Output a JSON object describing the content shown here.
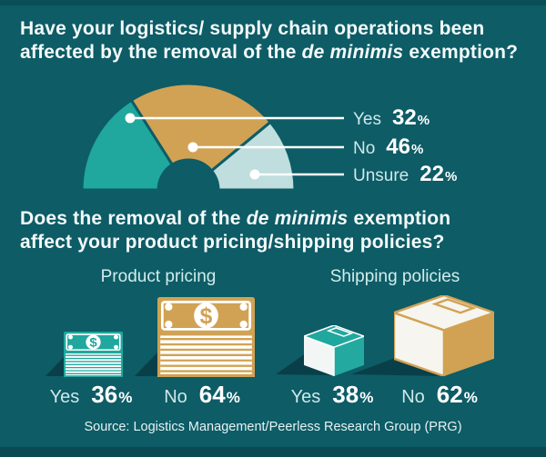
{
  "colors": {
    "background": "#0d5c66",
    "teal": "#20a79e",
    "gold": "#d1a254",
    "pale": "#bfdedd",
    "shadow": "#093f48",
    "label_light": "#cfe8ea",
    "white": "#ffffff"
  },
  "question1": {
    "line1": "Have your logistics/ supply chain operations been",
    "line2_pre": "affected by the removal of the ",
    "line2_italic": "de minimis",
    "line2_post": " exemption?"
  },
  "question2": {
    "line1_pre": "Does the removal of the ",
    "line1_italic": "de minimis",
    "line1_post": " exemption",
    "line2": "affect your product pricing/shipping policies?"
  },
  "icons": {
    "money_small": "money-stack-icon",
    "money_large": "money-stack-icon",
    "box_small": "shipping-box-icon",
    "box_large": "shipping-box-icon"
  },
  "source": "Source: Logistics Management/Peerless Research Group (PRG)",
  "chart_data": [
    {
      "type": "pie",
      "variant": "semicircle-donut",
      "title": "Have your logistics/ supply chain operations been affected by the removal of the de minimis exemption?",
      "categories": [
        "Yes",
        "No",
        "Unsure"
      ],
      "values": [
        32,
        46,
        22
      ],
      "unit": "%",
      "colors": [
        "#20a79e",
        "#d1a254",
        "#bfdedd"
      ],
      "legend_position": "right"
    },
    {
      "type": "pictogram",
      "title": "Does the removal of the de minimis exemption affect your product pricing/shipping policies?",
      "groups": [
        {
          "name": "Product pricing",
          "icon": "money-stack",
          "categories": [
            "Yes",
            "No"
          ],
          "values": [
            36,
            64
          ],
          "unit": "%",
          "colors": [
            "#20a79e",
            "#d1a254"
          ]
        },
        {
          "name": "Shipping policies",
          "icon": "shipping-box",
          "categories": [
            "Yes",
            "No"
          ],
          "values": [
            38,
            62
          ],
          "unit": "%",
          "colors": [
            "#20a79e",
            "#d1a254"
          ]
        }
      ]
    }
  ]
}
